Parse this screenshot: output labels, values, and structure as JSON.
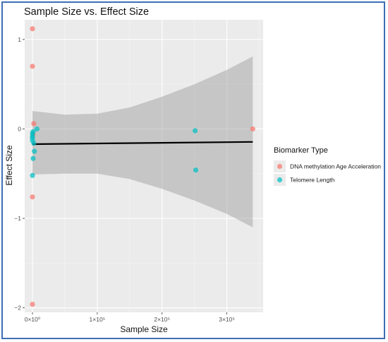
{
  "chart_data": {
    "type": "scatter",
    "title": "Sample Size vs. Effect Size",
    "xlabel": "Sample Size",
    "ylabel": "Effect Size",
    "xlim": [
      -12000,
      356000
    ],
    "ylim": [
      -2.05,
      1.22
    ],
    "x_ticks": [
      {
        "value": 0,
        "label": "0×10⁰"
      },
      {
        "value": 100000,
        "label": "1×10⁵"
      },
      {
        "value": 200000,
        "label": "2×10⁵"
      },
      {
        "value": 300000,
        "label": "3×10⁵"
      }
    ],
    "y_ticks": [
      {
        "value": 1,
        "label": "1"
      },
      {
        "value": 0,
        "label": "0"
      },
      {
        "value": -1,
        "label": "−1"
      },
      {
        "value": -2,
        "label": "−2"
      }
    ],
    "grid": true,
    "legend_title": "Biomarker Type",
    "legend_position": "right",
    "series": [
      {
        "name": "DNA methylation Age Acceleration",
        "color": "#f8766d",
        "points": [
          {
            "x": 0,
            "y": 1.12
          },
          {
            "x": 0,
            "y": 0.7
          },
          {
            "x": 2000,
            "y": 0.06
          },
          {
            "x": 1000,
            "y": -0.06
          },
          {
            "x": 0,
            "y": -0.76
          },
          {
            "x": 0,
            "y": -1.96
          },
          {
            "x": 340000,
            "y": 0.0
          }
        ]
      },
      {
        "name": "Telomere Length",
        "color": "#00bfc4",
        "points": [
          {
            "x": 7000,
            "y": 0.0
          },
          {
            "x": 1000,
            "y": -0.03
          },
          {
            "x": 0,
            "y": -0.05
          },
          {
            "x": 0,
            "y": -0.08
          },
          {
            "x": 0,
            "y": -0.1
          },
          {
            "x": 0,
            "y": -0.13
          },
          {
            "x": 2000,
            "y": -0.16
          },
          {
            "x": 3000,
            "y": -0.25
          },
          {
            "x": 1000,
            "y": -0.33
          },
          {
            "x": 0,
            "y": -0.52
          },
          {
            "x": 251000,
            "y": -0.02
          },
          {
            "x": 252000,
            "y": -0.46
          }
        ]
      }
    ],
    "regression": {
      "color": "#000000",
      "start": {
        "x": 0,
        "y": -0.17
      },
      "end": {
        "x": 340000,
        "y": -0.145
      }
    },
    "confidence_band": {
      "color": "#999999",
      "upper": [
        {
          "x": 0,
          "y": 0.2
        },
        {
          "x": 50000,
          "y": 0.16
        },
        {
          "x": 100000,
          "y": 0.17
        },
        {
          "x": 150000,
          "y": 0.24
        },
        {
          "x": 200000,
          "y": 0.36
        },
        {
          "x": 250000,
          "y": 0.5
        },
        {
          "x": 300000,
          "y": 0.66
        },
        {
          "x": 340000,
          "y": 0.81
        }
      ],
      "lower": [
        {
          "x": 0,
          "y": -0.51
        },
        {
          "x": 50000,
          "y": -0.5
        },
        {
          "x": 100000,
          "y": -0.5
        },
        {
          "x": 150000,
          "y": -0.56
        },
        {
          "x": 200000,
          "y": -0.67
        },
        {
          "x": 250000,
          "y": -0.8
        },
        {
          "x": 300000,
          "y": -0.95
        },
        {
          "x": 340000,
          "y": -1.1
        }
      ]
    }
  }
}
